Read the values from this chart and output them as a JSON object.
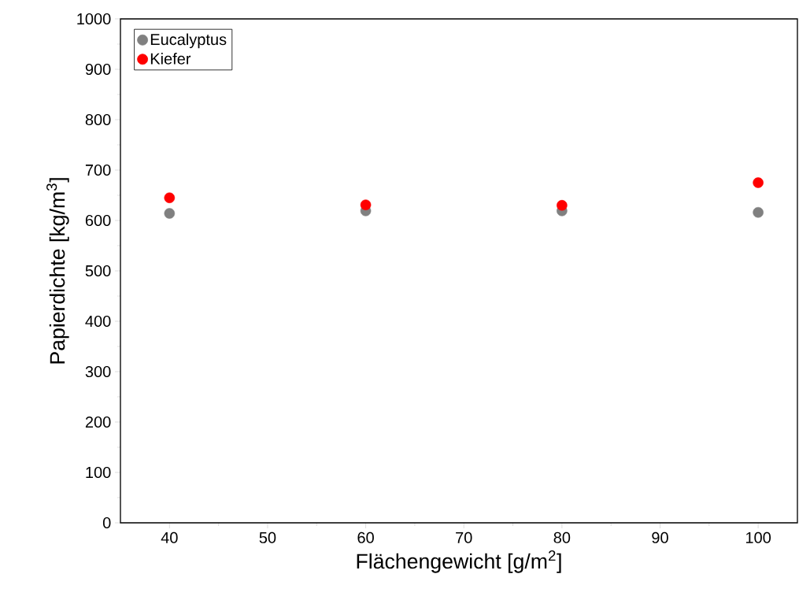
{
  "chart_data": {
    "type": "scatter",
    "xlabel": "Flächengewicht [g/m$^{2}$]",
    "ylabel": "Papierdichte [kg/m$^{3}$]",
    "x": [
      40,
      60,
      80,
      100
    ],
    "series": [
      {
        "name": "Eucalyptus",
        "color": "#808080",
        "values": [
          614,
          619,
          619,
          616
        ]
      },
      {
        "name": "Kiefer",
        "color": "#ff0000",
        "values": [
          645,
          631,
          630,
          675
        ]
      }
    ],
    "xlim": [
      35,
      104
    ],
    "ylim": [
      0,
      1000
    ],
    "xticks": [
      40,
      50,
      60,
      70,
      80,
      90,
      100
    ],
    "yticks": [
      0,
      100,
      200,
      300,
      400,
      500,
      600,
      700,
      800,
      900,
      1000
    ],
    "grid": false,
    "legend": "top left",
    "marker": "circle"
  }
}
